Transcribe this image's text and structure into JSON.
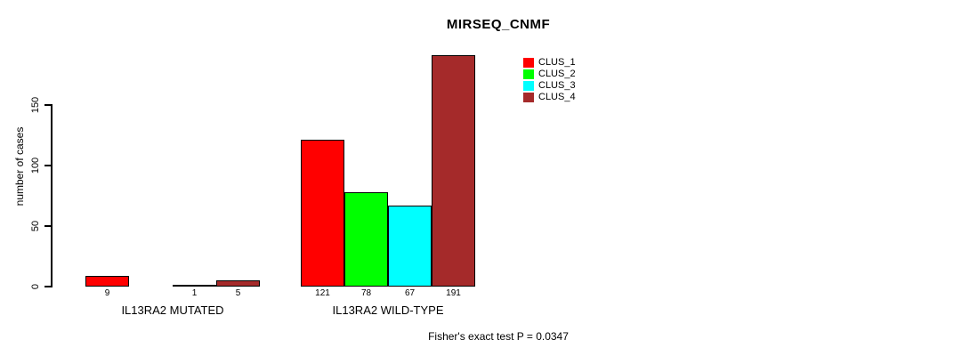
{
  "chart_data": {
    "type": "bar",
    "title": "MIRSEQ_CNMF",
    "ylabel": "number of cases",
    "xlabel": "",
    "yticks": [
      0,
      50,
      100,
      150
    ],
    "ylim": [
      0,
      150
    ],
    "grid": false,
    "categories": [
      "IL13RA2 MUTATED",
      "IL13RA2 WILD-TYPE"
    ],
    "series": [
      {
        "name": "CLUS_1",
        "color": "#ff0000",
        "values": [
          9,
          121
        ]
      },
      {
        "name": "CLUS_2",
        "color": "#00ff00",
        "values": [
          0,
          78
        ]
      },
      {
        "name": "CLUS_3",
        "color": "#00ffff",
        "values": [
          1,
          67
        ]
      },
      {
        "name": "CLUS_4",
        "color": "#a52a2a",
        "values": [
          5,
          191
        ]
      }
    ],
    "bar_value_labels": [
      [
        "9",
        "",
        "1",
        "5"
      ],
      [
        "121",
        "78",
        "67",
        "191"
      ]
    ],
    "legend": {
      "position": "top-right",
      "entries": [
        "CLUS_1",
        "CLUS_2",
        "CLUS_3",
        "CLUS_4"
      ]
    },
    "annotation": "Fisher's exact test P = 0.0347"
  }
}
